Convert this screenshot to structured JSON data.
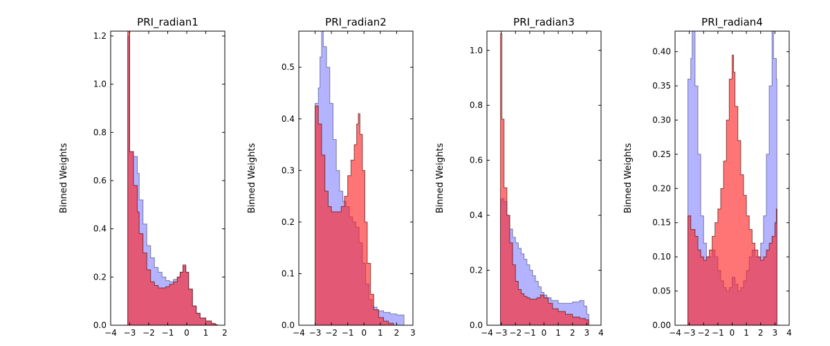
{
  "chart_data": [
    {
      "type": "area",
      "title": "PRI_radian1",
      "ylabel": "Binned Weights",
      "xlim": [
        -4,
        2
      ],
      "ylim": [
        0,
        1.22
      ],
      "xticks": [
        -4,
        -3,
        -2,
        -1,
        0,
        1,
        2
      ],
      "xtick_labels": [
        "−4",
        "−3",
        "−2",
        "−1",
        "0",
        "1",
        "2"
      ],
      "yticks": [
        0.0,
        0.2,
        0.4,
        0.6,
        0.8,
        1.0,
        1.2
      ],
      "ytick_labels": [
        "0.0",
        "0.2",
        "0.4",
        "0.6",
        "0.8",
        "1.0",
        "1.2"
      ],
      "series": [
        {
          "color": "#8080ff",
          "points": [
            [
              -3.14,
              0.0
            ],
            [
              -3.1,
              1.2
            ],
            [
              -3.0,
              0.72
            ],
            [
              -2.8,
              0.7
            ],
            [
              -2.6,
              0.63
            ],
            [
              -2.5,
              0.52
            ],
            [
              -2.3,
              0.42
            ],
            [
              -2.1,
              0.33
            ],
            [
              -1.9,
              0.28
            ],
            [
              -1.7,
              0.24
            ],
            [
              -1.5,
              0.22
            ],
            [
              -1.3,
              0.2
            ],
            [
              -1.1,
              0.185
            ],
            [
              -0.9,
              0.18
            ],
            [
              -0.7,
              0.19
            ],
            [
              -0.5,
              0.2
            ],
            [
              -0.35,
              0.22
            ],
            [
              -0.2,
              0.245
            ],
            [
              -0.05,
              0.22
            ],
            [
              0.1,
              0.15
            ],
            [
              0.3,
              0.08
            ],
            [
              0.5,
              0.05
            ],
            [
              0.7,
              0.03
            ],
            [
              1.0,
              0.015
            ],
            [
              1.3,
              0.005
            ],
            [
              1.5,
              0.002
            ],
            [
              1.6,
              0.0
            ]
          ]
        },
        {
          "color": "#ff2020",
          "points": [
            [
              -3.14,
              0.0
            ],
            [
              -3.1,
              1.22
            ],
            [
              -3.0,
              0.72
            ],
            [
              -2.8,
              0.58
            ],
            [
              -2.6,
              0.47
            ],
            [
              -2.5,
              0.38
            ],
            [
              -2.3,
              0.3
            ],
            [
              -2.1,
              0.23
            ],
            [
              -1.9,
              0.18
            ],
            [
              -1.7,
              0.165
            ],
            [
              -1.5,
              0.155
            ],
            [
              -1.3,
              0.155
            ],
            [
              -1.1,
              0.16
            ],
            [
              -0.9,
              0.17
            ],
            [
              -0.7,
              0.18
            ],
            [
              -0.5,
              0.2
            ],
            [
              -0.35,
              0.22
            ],
            [
              -0.2,
              0.25
            ],
            [
              -0.05,
              0.22
            ],
            [
              0.1,
              0.15
            ],
            [
              0.3,
              0.08
            ],
            [
              0.5,
              0.05
            ],
            [
              0.7,
              0.03
            ],
            [
              1.0,
              0.018
            ],
            [
              1.3,
              0.008
            ],
            [
              1.5,
              0.003
            ],
            [
              1.6,
              0.0
            ]
          ]
        }
      ]
    },
    {
      "type": "area",
      "title": "PRI_radian2",
      "ylabel": "Binned Weights",
      "xlim": [
        -4,
        3
      ],
      "ylim": [
        0,
        0.57
      ],
      "xticks": [
        -4,
        -3,
        -2,
        -1,
        0,
        1,
        2,
        3
      ],
      "xtick_labels": [
        "−4",
        "−3",
        "−2",
        "−1",
        "0",
        "1",
        "2",
        "3"
      ],
      "yticks": [
        0.0,
        0.1,
        0.2,
        0.3,
        0.4,
        0.5
      ],
      "ytick_labels": [
        "0.0",
        "0.1",
        "0.2",
        "0.3",
        "0.4",
        "0.5"
      ],
      "series": [
        {
          "color": "#8080ff",
          "points": [
            [
              -3.05,
              0.0
            ],
            [
              -3.0,
              0.43
            ],
            [
              -2.8,
              0.46
            ],
            [
              -2.7,
              0.52
            ],
            [
              -2.6,
              0.57
            ],
            [
              -2.5,
              0.54
            ],
            [
              -2.3,
              0.5
            ],
            [
              -2.1,
              0.43
            ],
            [
              -1.9,
              0.36
            ],
            [
              -1.7,
              0.3
            ],
            [
              -1.5,
              0.26
            ],
            [
              -1.3,
              0.24
            ],
            [
              -1.1,
              0.23
            ],
            [
              -0.9,
              0.21
            ],
            [
              -0.7,
              0.2
            ],
            [
              -0.5,
              0.19
            ],
            [
              -0.3,
              0.16
            ],
            [
              -0.1,
              0.12
            ],
            [
              0.1,
              0.08
            ],
            [
              0.3,
              0.05
            ],
            [
              0.5,
              0.035
            ],
            [
              0.8,
              0.028
            ],
            [
              1.2,
              0.025
            ],
            [
              1.6,
              0.022
            ],
            [
              2.0,
              0.02
            ],
            [
              2.4,
              0.02
            ],
            [
              2.45,
              0.0
            ]
          ]
        },
        {
          "color": "#ff2020",
          "points": [
            [
              -3.05,
              0.0
            ],
            [
              -3.0,
              0.425
            ],
            [
              -2.8,
              0.39
            ],
            [
              -2.6,
              0.33
            ],
            [
              -2.4,
              0.26
            ],
            [
              -2.2,
              0.23
            ],
            [
              -2.0,
              0.22
            ],
            [
              -1.8,
              0.22
            ],
            [
              -1.6,
              0.22
            ],
            [
              -1.4,
              0.23
            ],
            [
              -1.2,
              0.25
            ],
            [
              -1.0,
              0.29
            ],
            [
              -0.8,
              0.32
            ],
            [
              -0.6,
              0.35
            ],
            [
              -0.45,
              0.39
            ],
            [
              -0.35,
              0.41
            ],
            [
              -0.25,
              0.37
            ],
            [
              -0.1,
              0.3
            ],
            [
              0.05,
              0.2
            ],
            [
              0.2,
              0.12
            ],
            [
              0.4,
              0.06
            ],
            [
              0.6,
              0.03
            ],
            [
              0.9,
              0.015
            ],
            [
              1.2,
              0.008
            ],
            [
              1.5,
              0.004
            ],
            [
              1.8,
              0.0
            ]
          ]
        }
      ]
    },
    {
      "type": "area",
      "title": "PRI_radian3",
      "ylabel": "Binned Weights",
      "xlim": [
        -4,
        4
      ],
      "ylim": [
        0,
        1.07
      ],
      "xticks": [
        -4,
        -3,
        -2,
        -1,
        0,
        1,
        2,
        3,
        4
      ],
      "xtick_labels": [
        "−4",
        "−3",
        "−2",
        "−1",
        "0",
        "1",
        "2",
        "3",
        "4"
      ],
      "yticks": [
        0.0,
        0.2,
        0.4,
        0.6,
        0.8,
        1.0
      ],
      "ytick_labels": [
        "0.0",
        "0.2",
        "0.4",
        "0.6",
        "0.8",
        "1.0"
      ],
      "series": [
        {
          "color": "#8080ff",
          "points": [
            [
              -3.14,
              0.0
            ],
            [
              -3.05,
              0.46
            ],
            [
              -2.8,
              0.45
            ],
            [
              -2.6,
              0.4
            ],
            [
              -2.4,
              0.35
            ],
            [
              -2.2,
              0.32
            ],
            [
              -2.0,
              0.3
            ],
            [
              -1.8,
              0.28
            ],
            [
              -1.6,
              0.26
            ],
            [
              -1.4,
              0.24
            ],
            [
              -1.2,
              0.22
            ],
            [
              -1.0,
              0.2
            ],
            [
              -0.8,
              0.18
            ],
            [
              -0.6,
              0.16
            ],
            [
              -0.4,
              0.14
            ],
            [
              -0.2,
              0.12
            ],
            [
              0.0,
              0.11
            ],
            [
              0.2,
              0.1
            ],
            [
              0.5,
              0.09
            ],
            [
              1.0,
              0.08
            ],
            [
              1.5,
              0.08
            ],
            [
              2.0,
              0.085
            ],
            [
              2.5,
              0.09
            ],
            [
              2.8,
              0.07
            ],
            [
              3.0,
              0.04
            ],
            [
              3.14,
              0.0
            ]
          ]
        },
        {
          "color": "#ff2020",
          "points": [
            [
              -3.14,
              0.0
            ],
            [
              -3.05,
              1.06
            ],
            [
              -2.95,
              0.75
            ],
            [
              -2.8,
              0.5
            ],
            [
              -2.6,
              0.4
            ],
            [
              -2.4,
              0.3
            ],
            [
              -2.2,
              0.22
            ],
            [
              -2.0,
              0.16
            ],
            [
              -1.8,
              0.13
            ],
            [
              -1.6,
              0.115
            ],
            [
              -1.4,
              0.105
            ],
            [
              -1.2,
              0.1
            ],
            [
              -1.0,
              0.095
            ],
            [
              -0.8,
              0.095
            ],
            [
              -0.5,
              0.1
            ],
            [
              -0.25,
              0.11
            ],
            [
              0.0,
              0.1
            ],
            [
              0.3,
              0.08
            ],
            [
              0.6,
              0.06
            ],
            [
              1.0,
              0.05
            ],
            [
              1.5,
              0.04
            ],
            [
              2.0,
              0.03
            ],
            [
              2.5,
              0.025
            ],
            [
              2.9,
              0.02
            ],
            [
              3.14,
              0.0
            ]
          ]
        }
      ]
    },
    {
      "type": "area",
      "title": "PRI_radian4",
      "ylabel": "Binned Weights",
      "xlim": [
        -4,
        4
      ],
      "ylim": [
        0,
        0.43
      ],
      "xticks": [
        -4,
        -3,
        -2,
        -1,
        0,
        1,
        2,
        3,
        4
      ],
      "xtick_labels": [
        "−4",
        "−3",
        "−2",
        "−1",
        "0",
        "1",
        "2",
        "3",
        "4"
      ],
      "yticks": [
        0.0,
        0.05,
        0.1,
        0.15,
        0.2,
        0.25,
        0.3,
        0.35,
        0.4
      ],
      "ytick_labels": [
        "0.00",
        "0.05",
        "0.10",
        "0.15",
        "0.20",
        "0.25",
        "0.30",
        "0.35",
        "0.40"
      ],
      "series": [
        {
          "color": "#8080ff",
          "points": [
            [
              -3.14,
              0.0
            ],
            [
              -3.1,
              0.36
            ],
            [
              -2.9,
              0.39
            ],
            [
              -2.8,
              0.43
            ],
            [
              -2.6,
              0.35
            ],
            [
              -2.4,
              0.25
            ],
            [
              -2.2,
              0.16
            ],
            [
              -2.0,
              0.12
            ],
            [
              -1.8,
              0.1
            ],
            [
              -1.6,
              0.1
            ],
            [
              -1.4,
              0.11
            ],
            [
              -1.2,
              0.1
            ],
            [
              -1.0,
              0.08
            ],
            [
              -0.8,
              0.065
            ],
            [
              -0.6,
              0.055
            ],
            [
              -0.4,
              0.05
            ],
            [
              -0.2,
              0.055
            ],
            [
              0.0,
              0.07
            ],
            [
              0.2,
              0.06
            ],
            [
              0.4,
              0.05
            ],
            [
              0.6,
              0.055
            ],
            [
              0.8,
              0.065
            ],
            [
              1.0,
              0.08
            ],
            [
              1.2,
              0.1
            ],
            [
              1.4,
              0.11
            ],
            [
              1.6,
              0.1
            ],
            [
              1.8,
              0.1
            ],
            [
              2.0,
              0.12
            ],
            [
              2.2,
              0.16
            ],
            [
              2.4,
              0.25
            ],
            [
              2.6,
              0.35
            ],
            [
              2.8,
              0.43
            ],
            [
              2.9,
              0.39
            ],
            [
              3.1,
              0.36
            ],
            [
              3.14,
              0.0
            ]
          ]
        },
        {
          "color": "#ff2020",
          "points": [
            [
              -3.14,
              0.0
            ],
            [
              -3.1,
              0.16
            ],
            [
              -2.9,
              0.14
            ],
            [
              -2.6,
              0.13
            ],
            [
              -2.4,
              0.11
            ],
            [
              -2.2,
              0.1
            ],
            [
              -2.0,
              0.095
            ],
            [
              -1.8,
              0.1
            ],
            [
              -1.6,
              0.11
            ],
            [
              -1.4,
              0.13
            ],
            [
              -1.2,
              0.15
            ],
            [
              -1.0,
              0.17
            ],
            [
              -0.8,
              0.2
            ],
            [
              -0.6,
              0.24
            ],
            [
              -0.4,
              0.3
            ],
            [
              -0.2,
              0.36
            ],
            [
              0.0,
              0.395
            ],
            [
              0.1,
              0.37
            ],
            [
              0.2,
              0.32
            ],
            [
              0.4,
              0.27
            ],
            [
              0.6,
              0.22
            ],
            [
              0.8,
              0.19
            ],
            [
              1.0,
              0.16
            ],
            [
              1.2,
              0.14
            ],
            [
              1.4,
              0.12
            ],
            [
              1.6,
              0.11
            ],
            [
              1.8,
              0.1
            ],
            [
              2.0,
              0.095
            ],
            [
              2.2,
              0.1
            ],
            [
              2.4,
              0.11
            ],
            [
              2.6,
              0.12
            ],
            [
              2.8,
              0.13
            ],
            [
              3.0,
              0.15
            ],
            [
              3.1,
              0.17
            ],
            [
              3.14,
              0.0
            ]
          ]
        }
      ]
    }
  ]
}
